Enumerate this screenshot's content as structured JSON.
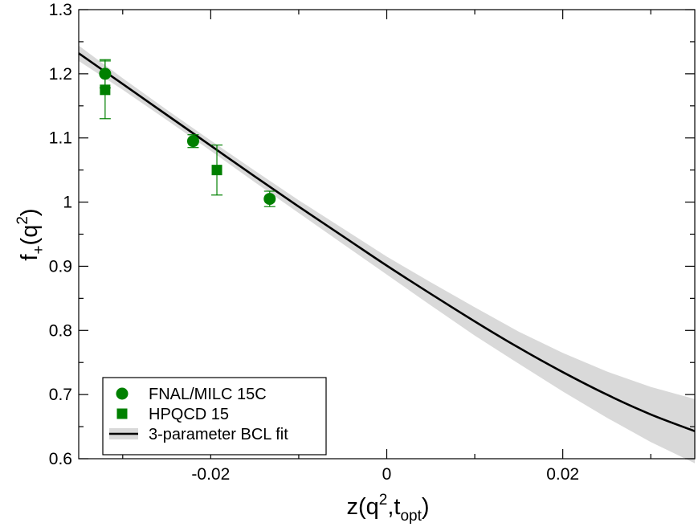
{
  "chart_data": {
    "type": "scatter",
    "title": "",
    "xlabel": {
      "main": "z(q",
      "sup": "2",
      "sep": ",t",
      "sub": "opt",
      "close": ")"
    },
    "ylabel": {
      "main": "f",
      "sub": "+",
      "open": "(q",
      "sup": "2",
      "close": ")"
    },
    "xlim": [
      -0.035,
      0.035
    ],
    "ylim": [
      0.6,
      1.3
    ],
    "xticks": [
      {
        "value": -0.02,
        "label": "-0.02"
      },
      {
        "value": 0,
        "label": "0"
      },
      {
        "value": 0.02,
        "label": "0.02"
      }
    ],
    "yticks": [
      {
        "value": 0.6,
        "label": "0.6"
      },
      {
        "value": 0.7,
        "label": "0.7"
      },
      {
        "value": 0.8,
        "label": "0.8"
      },
      {
        "value": 0.9,
        "label": "0.9"
      },
      {
        "value": 1.0,
        "label": "1"
      },
      {
        "value": 1.1,
        "label": "1.1"
      },
      {
        "value": 1.2,
        "label": "1.2"
      },
      {
        "value": 1.3,
        "label": "1.3"
      }
    ],
    "grid": false,
    "legend_position": "bottom-left",
    "series": [
      {
        "name": "FNAL/MILC 15C",
        "marker": "circle",
        "color": "#008000",
        "points": [
          {
            "x": -0.032,
            "y": 1.2,
            "err": 0.022
          },
          {
            "x": -0.022,
            "y": 1.095,
            "err": 0.01
          },
          {
            "x": -0.0133,
            "y": 1.005,
            "err": 0.012
          }
        ]
      },
      {
        "name": "HPQCD 15",
        "marker": "square",
        "color": "#008000",
        "points": [
          {
            "x": -0.032,
            "y": 1.175,
            "err": 0.045
          },
          {
            "x": -0.0193,
            "y": 1.05,
            "err": 0.039
          }
        ]
      },
      {
        "name": "3-parameter BCL fit",
        "marker": "line",
        "color": "#000000",
        "band_color": "#d9d9d9",
        "x": [
          -0.035,
          -0.03,
          -0.025,
          -0.02,
          -0.015,
          -0.01,
          -0.005,
          0.0,
          0.005,
          0.01,
          0.015,
          0.02,
          0.025,
          0.03,
          0.035
        ],
        "y": [
          1.232,
          1.184,
          1.136,
          1.088,
          1.04,
          0.993,
          0.947,
          0.901,
          0.857,
          0.814,
          0.773,
          0.735,
          0.7,
          0.669,
          0.643
        ],
        "band_lower": [
          1.22,
          1.175,
          1.128,
          1.08,
          1.031,
          0.983,
          0.935,
          0.887,
          0.839,
          0.792,
          0.748,
          0.705,
          0.664,
          0.626,
          0.593
        ],
        "band_upper": [
          1.244,
          1.193,
          1.144,
          1.096,
          1.049,
          1.003,
          0.959,
          0.915,
          0.875,
          0.836,
          0.798,
          0.765,
          0.736,
          0.712,
          0.693
        ]
      }
    ]
  }
}
